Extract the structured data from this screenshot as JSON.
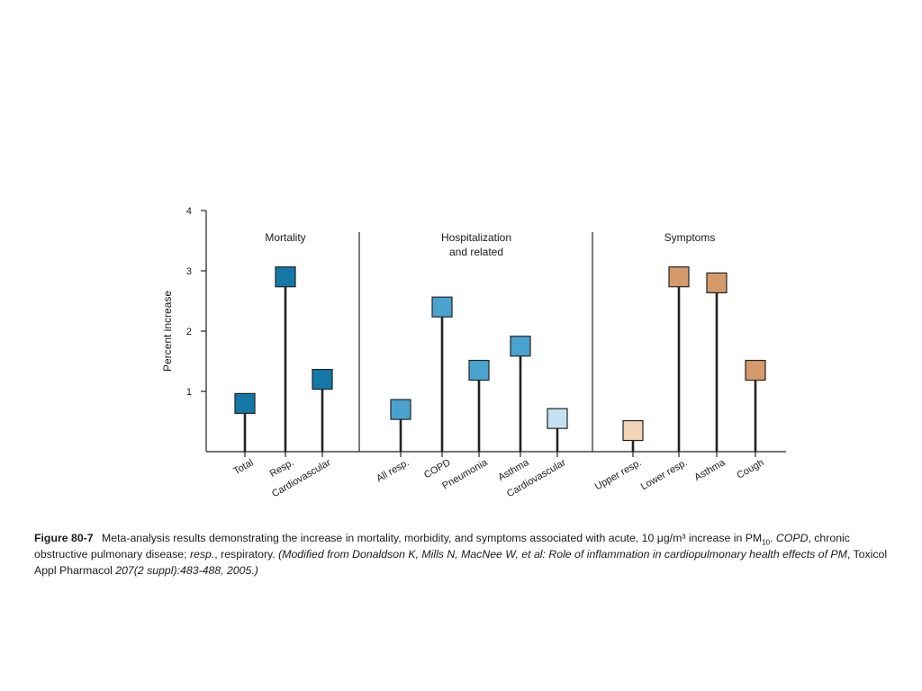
{
  "chart_data": {
    "type": "lollipop",
    "ylabel": "Percent increase",
    "y_ticks": [
      "1",
      "2",
      "3",
      "4"
    ],
    "ylim": [
      0,
      4
    ],
    "panels": [
      {
        "title": [
          "Mortality"
        ],
        "color": "#1479a8",
        "categories": [
          "Total",
          "Resp.",
          "Cardiovascular"
        ],
        "values": [
          0.8,
          2.9,
          1.2
        ]
      },
      {
        "title": [
          "Hospitalization",
          "and related"
        ],
        "categories": [
          "All resp.",
          "COPD",
          "Pneumonia",
          "Asthma",
          "Cardiovascular"
        ],
        "colors": [
          "#4aa3cf",
          "#4aa3cf",
          "#4aa3cf",
          "#4aa3cf",
          "#c4e1f1"
        ],
        "values": [
          0.7,
          2.4,
          1.35,
          1.75,
          0.55
        ]
      },
      {
        "title": [
          "Symptoms"
        ],
        "categories": [
          "Upper resp.",
          "Lower resp.",
          "Asthma",
          "Cough"
        ],
        "colors": [
          "#f2d3b8",
          "#d59a6b",
          "#d59a6b",
          "#d59a6b"
        ],
        "values": [
          0.35,
          2.9,
          2.8,
          1.35
        ]
      }
    ]
  },
  "caption": {
    "figure_number": "Figure 80-7",
    "text1": "Meta-analysis results demonstrating the increase in mortality, morbidity, and symptoms associated with acute, 10 μg/m³ increase in PM",
    "subscript": "10",
    "text2": ". ",
    "abbrev1": "COPD",
    "text3": ", chronic obstructive pulmonary disease; ",
    "abbrev2": "resp.",
    "text4": ", respiratory.   ",
    "citation1": "(Modified from Donaldson K, Mills N, MacNee W, et al: Role of inflammation in cardiopulmonary health effects of PM",
    "journal": ", Toxicol Appl Pharmacol ",
    "citation2": "207(2 suppl):483-488, 2005.)"
  }
}
